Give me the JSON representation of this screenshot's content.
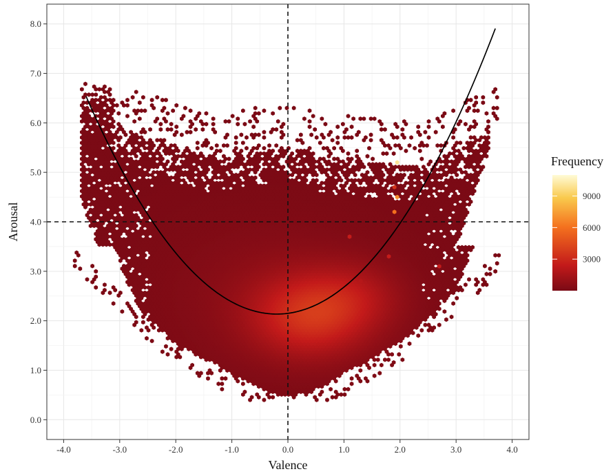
{
  "chart_data": {
    "type": "heatmap",
    "subtype": "hexbin",
    "xlabel": "Valence",
    "ylabel": "Arousal",
    "xlim": [
      -4.3,
      4.3
    ],
    "ylim": [
      -0.4,
      8.4
    ],
    "x_ticks": [
      -4,
      -3,
      -2,
      -1,
      0,
      1,
      2,
      3,
      4
    ],
    "x_tick_labels": [
      "-4.0",
      "-3.0",
      "-2.0",
      "-1.0",
      "0.0",
      "1.0",
      "2.0",
      "3.0",
      "4.0"
    ],
    "y_ticks": [
      0,
      1,
      2,
      3,
      4,
      5,
      6,
      7,
      8
    ],
    "y_tick_labels": [
      "0.0",
      "1.0",
      "2.0",
      "3.0",
      "4.0",
      "5.0",
      "6.0",
      "7.0",
      "8.0"
    ],
    "grid": true,
    "reference_lines": {
      "vertical_x": 0,
      "horizontal_y": 4,
      "style": "dashed"
    },
    "fit_curve": {
      "type": "quadratic",
      "x_range": [
        -3.6,
        3.7
      ],
      "points": [
        {
          "x": -3.6,
          "y": 6.6
        },
        {
          "x": -2.5,
          "y": 4.0
        },
        {
          "x": 0.0,
          "y": 2.15
        },
        {
          "x": 2.8,
          "y": 5.0
        },
        {
          "x": 3.7,
          "y": 7.4
        }
      ]
    },
    "density": {
      "hotspots": [
        {
          "x": 0.4,
          "y": 2.1,
          "weight": 3000,
          "spread": 0.7
        },
        {
          "x": 1.2,
          "y": 2.5,
          "weight": 1200,
          "spread": 0.6
        },
        {
          "x": -0.2,
          "y": 2.5,
          "weight": 600,
          "spread": 1.2
        }
      ],
      "outliers": [
        {
          "x": 1.95,
          "y": 4.5,
          "frequency": 7000
        },
        {
          "x": 1.9,
          "y": 4.2,
          "frequency": 6000
        },
        {
          "x": 1.95,
          "y": 5.2,
          "frequency": 10000
        },
        {
          "x": 1.9,
          "y": 4.7,
          "frequency": 3500
        },
        {
          "x": 1.1,
          "y": 3.7,
          "frequency": 2500
        },
        {
          "x": 1.8,
          "y": 3.3,
          "frequency": 2500
        },
        {
          "x": 2.7,
          "y": 3.1,
          "frequency": 2500
        },
        {
          "x": 1.3,
          "y": 2.8,
          "frequency": 2000
        }
      ]
    },
    "legend": {
      "title": "Frequency",
      "placement": "right",
      "ticks": [
        3000,
        6000,
        9000
      ],
      "tick_labels": [
        "3000",
        "6000",
        "9000"
      ],
      "range": [
        0,
        11000
      ],
      "colors": [
        "#7a0a15",
        "#c31a1a",
        "#f4711e",
        "#f9c94c",
        "#fffbd6"
      ]
    }
  }
}
